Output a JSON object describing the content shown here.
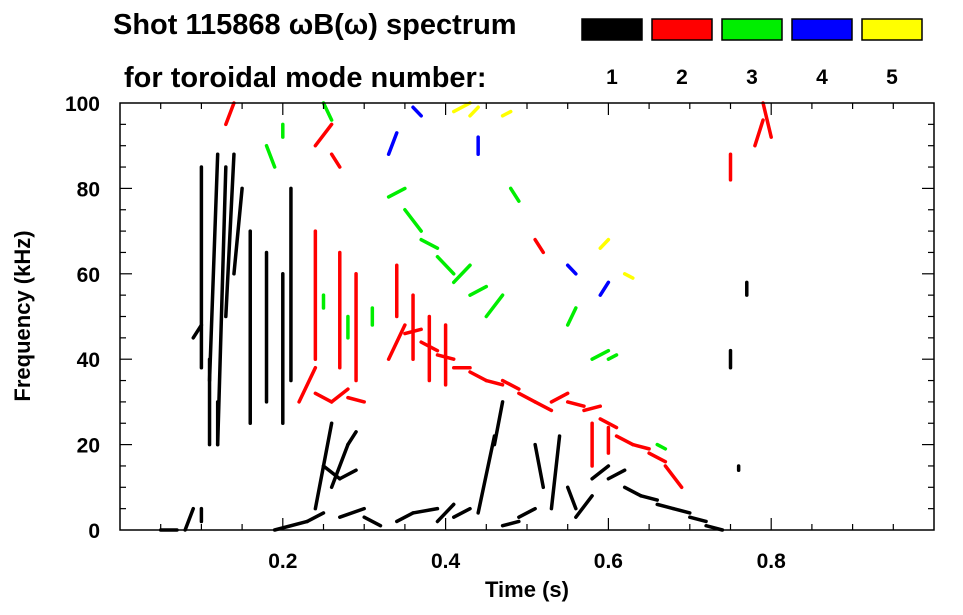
{
  "chart_data": {
    "type": "scatter",
    "title_line1": "Shot 115868 ωB(ω) spectrum",
    "title_line2": "for toroidal mode number:",
    "xlabel": "Time (s)",
    "ylabel": "Frequency (kHz)",
    "xlim": [
      0.0,
      1.0
    ],
    "ylim": [
      0,
      100
    ],
    "xticks": [
      {
        "value": 0.2,
        "label": "0.2"
      },
      {
        "value": 0.4,
        "label": "0.4"
      },
      {
        "value": 0.6,
        "label": "0.6"
      },
      {
        "value": 0.8,
        "label": "0.8"
      }
    ],
    "yticks": [
      {
        "value": 0,
        "label": "0"
      },
      {
        "value": 20,
        "label": "20"
      },
      {
        "value": 40,
        "label": "40"
      },
      {
        "value": 60,
        "label": "60"
      },
      {
        "value": 80,
        "label": "80"
      },
      {
        "value": 100,
        "label": "100"
      }
    ],
    "legend": [
      {
        "label": "1",
        "color": "#000000"
      },
      {
        "label": "2",
        "color": "#ff0000"
      },
      {
        "label": "3",
        "color": "#00ee00"
      },
      {
        "label": "4",
        "color": "#0000ff"
      },
      {
        "label": "5",
        "color": "#ffff00"
      }
    ],
    "series": [
      {
        "name": "1",
        "color": "#000000",
        "segments": [
          [
            0.05,
            0,
            0.07,
            0
          ],
          [
            0.08,
            0,
            0.09,
            5
          ],
          [
            0.09,
            45,
            0.1,
            48
          ],
          [
            0.1,
            38,
            0.1,
            85
          ],
          [
            0.11,
            35,
            0.12,
            88
          ],
          [
            0.12,
            20,
            0.13,
            85
          ],
          [
            0.13,
            50,
            0.14,
            88
          ],
          [
            0.14,
            60,
            0.15,
            80
          ],
          [
            0.11,
            20,
            0.11,
            40
          ],
          [
            0.12,
            20,
            0.12,
            30
          ],
          [
            0.16,
            25,
            0.16,
            70
          ],
          [
            0.18,
            30,
            0.18,
            65
          ],
          [
            0.2,
            25,
            0.2,
            60
          ],
          [
            0.21,
            35,
            0.21,
            80
          ],
          [
            0.19,
            0,
            0.23,
            2
          ],
          [
            0.23,
            2,
            0.25,
            4
          ],
          [
            0.24,
            5,
            0.26,
            25
          ],
          [
            0.25,
            15,
            0.27,
            12
          ],
          [
            0.26,
            10,
            0.28,
            20
          ],
          [
            0.27,
            12,
            0.29,
            14
          ],
          [
            0.28,
            20,
            0.29,
            23
          ],
          [
            0.27,
            3,
            0.3,
            5
          ],
          [
            0.3,
            3,
            0.32,
            1
          ],
          [
            0.34,
            2,
            0.36,
            4
          ],
          [
            0.36,
            4,
            0.39,
            5
          ],
          [
            0.39,
            2,
            0.41,
            6
          ],
          [
            0.41,
            3,
            0.43,
            5
          ],
          [
            0.44,
            4,
            0.46,
            22
          ],
          [
            0.46,
            20,
            0.47,
            30
          ],
          [
            0.47,
            1,
            0.49,
            2
          ],
          [
            0.49,
            3,
            0.51,
            5
          ],
          [
            0.51,
            20,
            0.52,
            10
          ],
          [
            0.53,
            5,
            0.54,
            22
          ],
          [
            0.55,
            10,
            0.56,
            5
          ],
          [
            0.56,
            3,
            0.58,
            8
          ],
          [
            0.58,
            12,
            0.6,
            15
          ],
          [
            0.6,
            12,
            0.62,
            14
          ],
          [
            0.62,
            10,
            0.64,
            8
          ],
          [
            0.64,
            8,
            0.66,
            7
          ],
          [
            0.66,
            6,
            0.68,
            5
          ],
          [
            0.68,
            5,
            0.7,
            4
          ],
          [
            0.7,
            3,
            0.72,
            2
          ],
          [
            0.72,
            1,
            0.74,
            0
          ],
          [
            0.75,
            38,
            0.75,
            42
          ],
          [
            0.76,
            15,
            0.76,
            14
          ],
          [
            0.77,
            55,
            0.77,
            58
          ],
          [
            0.1,
            2,
            0.1,
            5
          ]
        ]
      },
      {
        "name": "2",
        "color": "#ff0000",
        "segments": [
          [
            0.13,
            95,
            0.14,
            100
          ],
          [
            0.24,
            90,
            0.26,
            95
          ],
          [
            0.26,
            88,
            0.27,
            85
          ],
          [
            0.22,
            30,
            0.24,
            38
          ],
          [
            0.24,
            32,
            0.26,
            30
          ],
          [
            0.26,
            30,
            0.28,
            33
          ],
          [
            0.28,
            31,
            0.3,
            30
          ],
          [
            0.24,
            40,
            0.24,
            70
          ],
          [
            0.27,
            38,
            0.27,
            65
          ],
          [
            0.29,
            35,
            0.29,
            60
          ],
          [
            0.33,
            40,
            0.35,
            48
          ],
          [
            0.35,
            46,
            0.37,
            47
          ],
          [
            0.37,
            44,
            0.39,
            42
          ],
          [
            0.39,
            41,
            0.41,
            40
          ],
          [
            0.41,
            38,
            0.43,
            38
          ],
          [
            0.43,
            37,
            0.45,
            35
          ],
          [
            0.45,
            35,
            0.47,
            34
          ],
          [
            0.47,
            35,
            0.49,
            33
          ],
          [
            0.49,
            32,
            0.51,
            30
          ],
          [
            0.51,
            30,
            0.53,
            28
          ],
          [
            0.53,
            30,
            0.55,
            32
          ],
          [
            0.55,
            30,
            0.57,
            29
          ],
          [
            0.57,
            28,
            0.59,
            29
          ],
          [
            0.59,
            26,
            0.61,
            24
          ],
          [
            0.61,
            22,
            0.63,
            20
          ],
          [
            0.63,
            20,
            0.65,
            19
          ],
          [
            0.65,
            18,
            0.67,
            16
          ],
          [
            0.67,
            15,
            0.69,
            10
          ],
          [
            0.34,
            50,
            0.34,
            62
          ],
          [
            0.36,
            40,
            0.36,
            55
          ],
          [
            0.38,
            35,
            0.38,
            50
          ],
          [
            0.4,
            34,
            0.4,
            48
          ],
          [
            0.51,
            68,
            0.52,
            65
          ],
          [
            0.58,
            15,
            0.58,
            25
          ],
          [
            0.6,
            18,
            0.6,
            24
          ],
          [
            0.75,
            82,
            0.75,
            88
          ],
          [
            0.78,
            90,
            0.79,
            96
          ],
          [
            0.79,
            100,
            0.8,
            92
          ]
        ]
      },
      {
        "name": "3",
        "color": "#00ee00",
        "segments": [
          [
            0.2,
            95,
            0.2,
            92
          ],
          [
            0.25,
            100,
            0.26,
            96
          ],
          [
            0.18,
            90,
            0.19,
            85
          ],
          [
            0.25,
            55,
            0.25,
            52
          ],
          [
            0.28,
            45,
            0.28,
            50
          ],
          [
            0.31,
            48,
            0.31,
            52
          ],
          [
            0.33,
            78,
            0.35,
            80
          ],
          [
            0.35,
            75,
            0.37,
            70
          ],
          [
            0.37,
            68,
            0.39,
            66
          ],
          [
            0.39,
            64,
            0.41,
            60
          ],
          [
            0.41,
            58,
            0.43,
            62
          ],
          [
            0.43,
            55,
            0.45,
            57
          ],
          [
            0.45,
            50,
            0.47,
            55
          ],
          [
            0.48,
            80,
            0.49,
            77
          ],
          [
            0.55,
            48,
            0.56,
            52
          ],
          [
            0.58,
            40,
            0.6,
            42
          ],
          [
            0.6,
            40,
            0.61,
            41
          ],
          [
            0.66,
            20,
            0.67,
            19
          ]
        ]
      },
      {
        "name": "4",
        "color": "#0000ff",
        "segments": [
          [
            0.33,
            88,
            0.34,
            93
          ],
          [
            0.36,
            99,
            0.37,
            97
          ],
          [
            0.44,
            92,
            0.44,
            88
          ],
          [
            0.55,
            62,
            0.56,
            60
          ],
          [
            0.59,
            55,
            0.6,
            58
          ]
        ]
      },
      {
        "name": "5",
        "color": "#ffff00",
        "segments": [
          [
            0.41,
            98,
            0.43,
            100
          ],
          [
            0.43,
            97,
            0.44,
            99
          ],
          [
            0.47,
            97,
            0.48,
            98
          ],
          [
            0.59,
            66,
            0.6,
            68
          ],
          [
            0.62,
            60,
            0.63,
            59
          ]
        ]
      }
    ]
  }
}
